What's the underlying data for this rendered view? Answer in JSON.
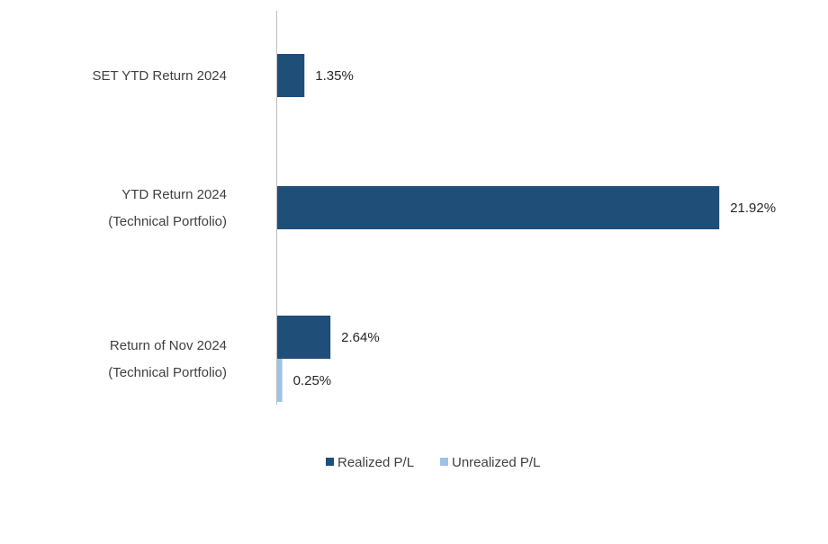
{
  "chart_data": {
    "type": "bar",
    "orientation": "horizontal",
    "categories": [
      [
        "SET YTD Return 2024"
      ],
      [
        "YTD Return 2024",
        "(Technical Portfolio)"
      ],
      [
        "Return of Nov 2024",
        "(Technical Portfolio)"
      ]
    ],
    "series": [
      {
        "name": "Realized P/L",
        "color": "#1f4e79",
        "values": [
          1.35,
          21.92,
          2.64
        ]
      },
      {
        "name": "Unrealized P/L",
        "color": "#9dc3e6",
        "values": [
          null,
          null,
          0.25
        ]
      }
    ],
    "data_labels": [
      [
        "1.35%",
        "21.92%",
        "2.64%"
      ],
      [
        null,
        null,
        "0.25%"
      ]
    ],
    "value_unit": "%",
    "xlim": [
      0,
      22
    ],
    "grid": false,
    "legend_position": "bottom"
  }
}
